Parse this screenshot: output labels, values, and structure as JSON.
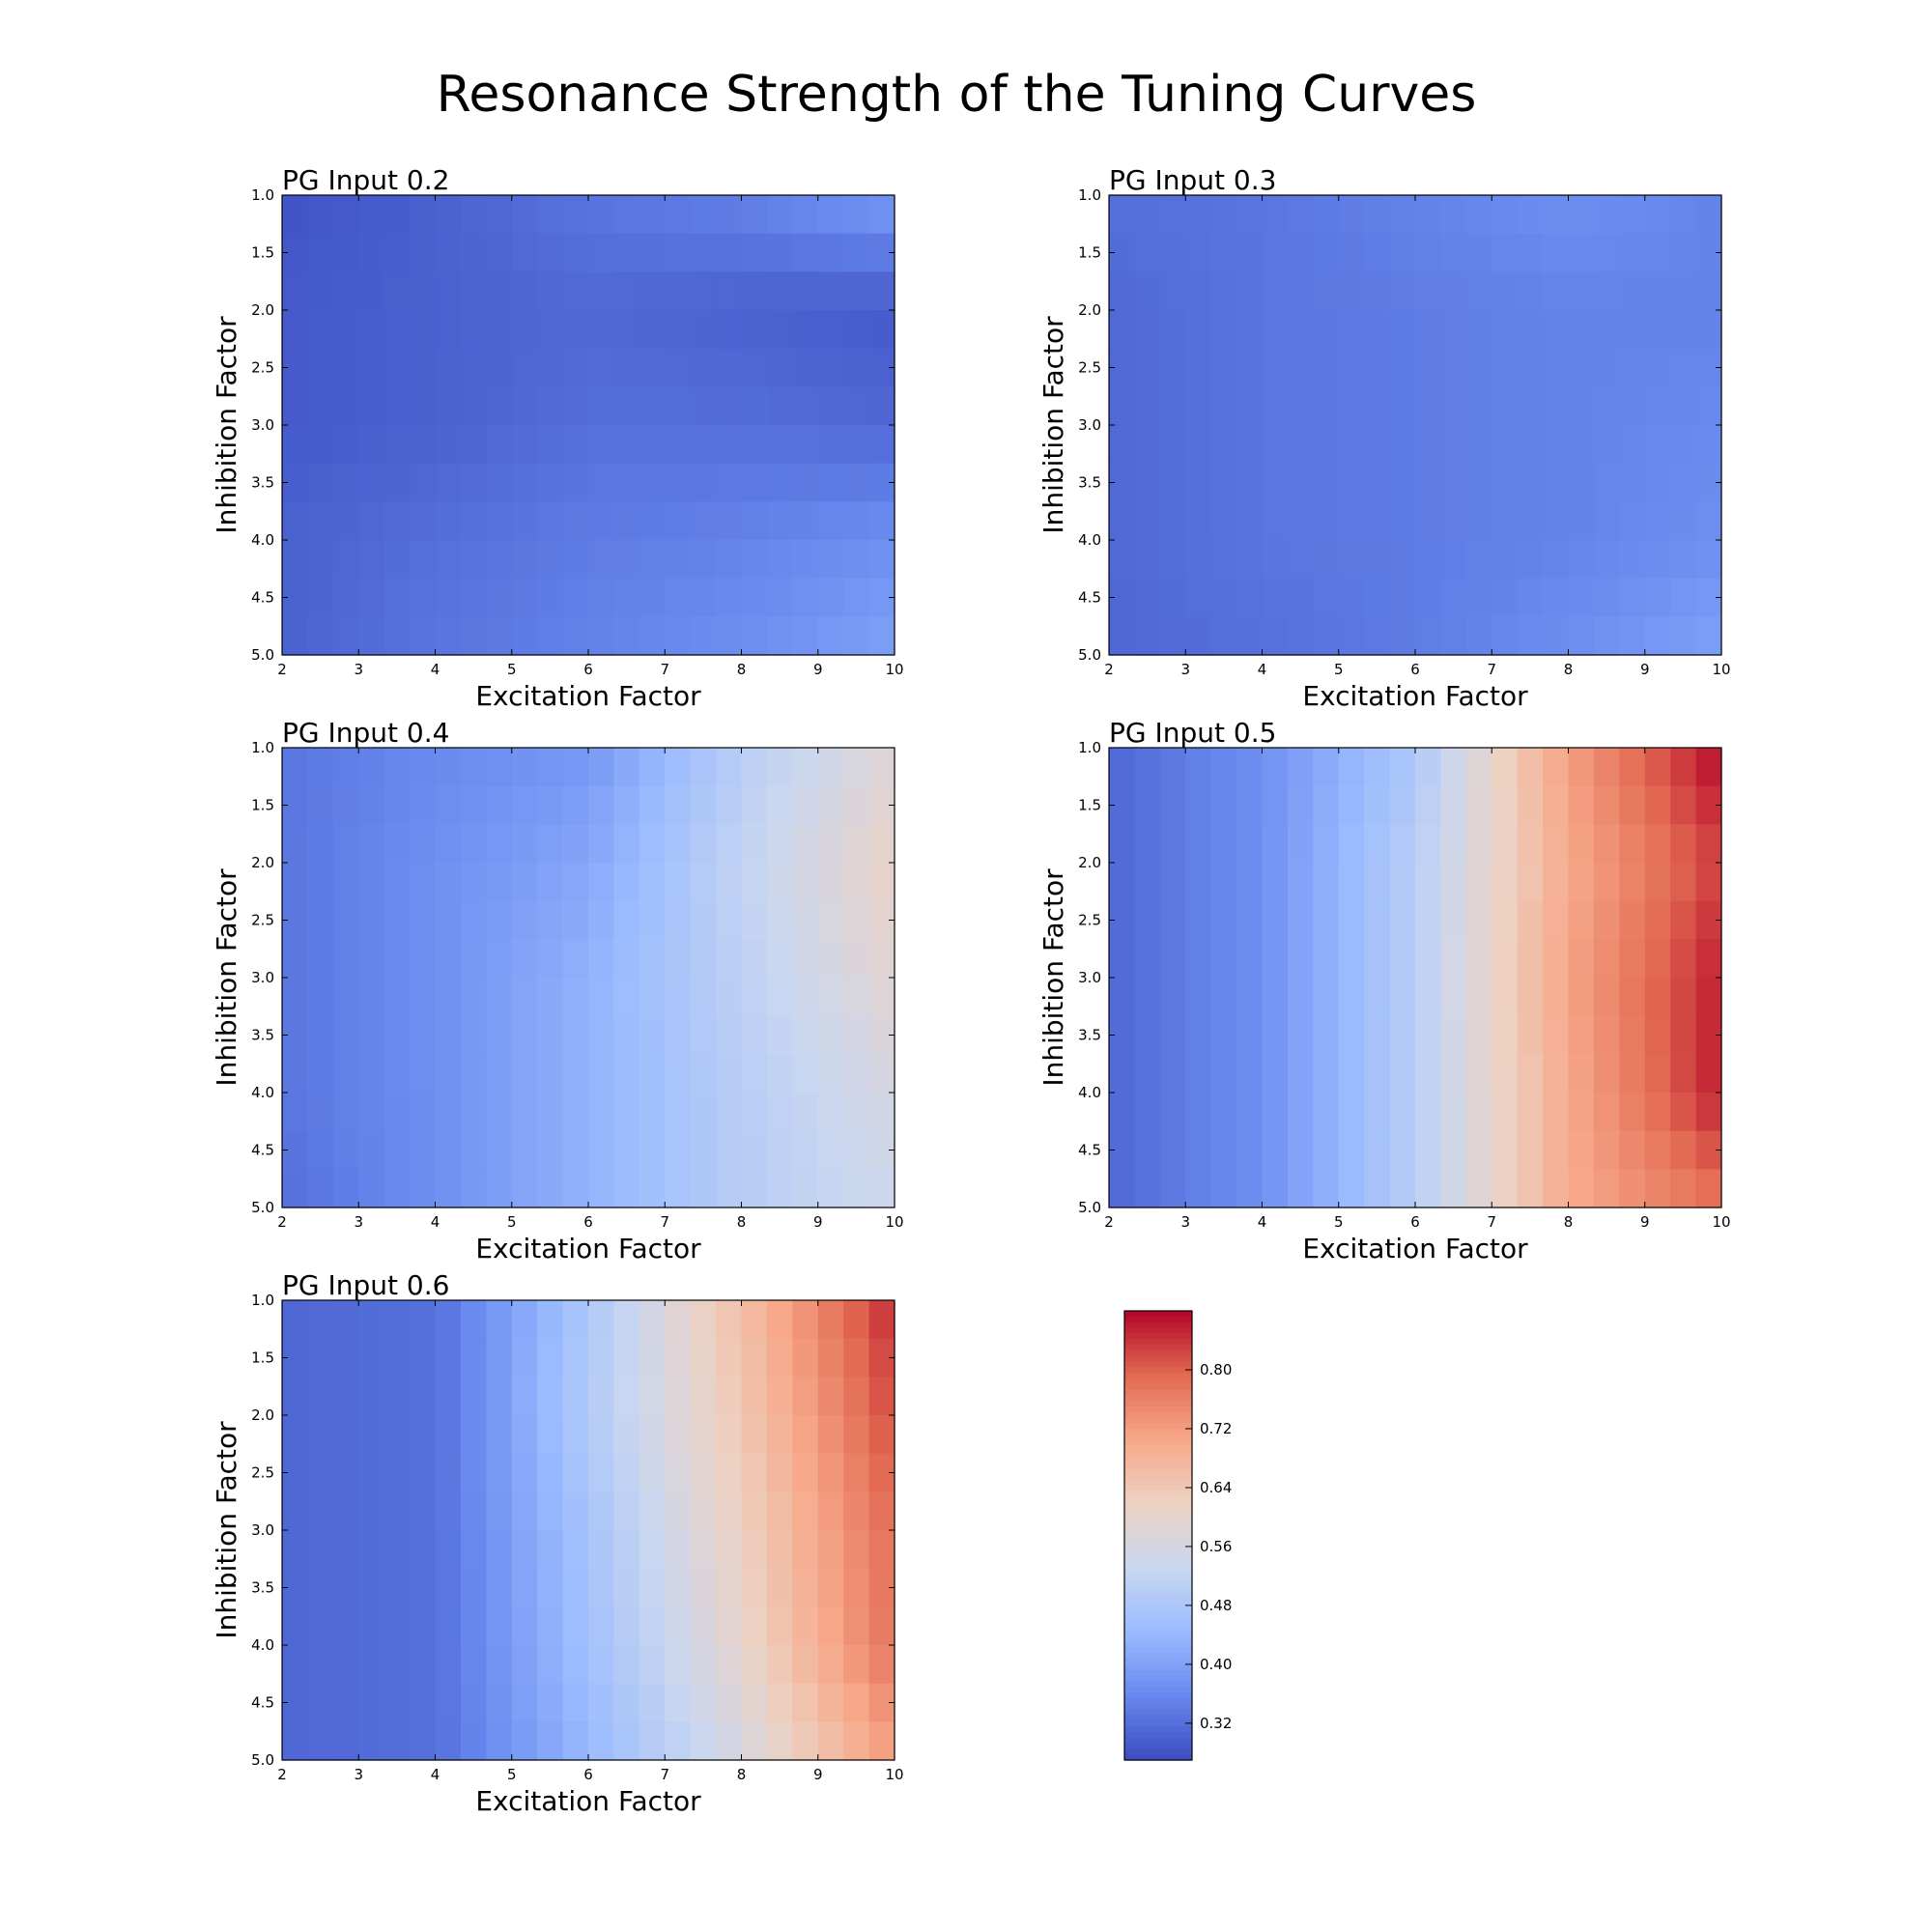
{
  "figure_title": "Resonance Strength of the Tuning Curves",
  "colormap": {
    "name": "coolwarm",
    "vmin": 0.27,
    "vmax": 0.88,
    "stops": [
      "#3b4cc0",
      "#6788ee",
      "#9abbff",
      "#c9d7f0",
      "#edd1c2",
      "#f7a889",
      "#e26952",
      "#b40426"
    ]
  },
  "colorbar": {
    "ticks": [
      0.32,
      0.4,
      0.48,
      0.56,
      0.64,
      0.72,
      0.8
    ],
    "tick_labels": [
      "0.32",
      "0.40",
      "0.48",
      "0.56",
      "0.64",
      "0.72",
      "0.80"
    ]
  },
  "chart_data": [
    {
      "type": "heatmap",
      "title": "PG Input 0.2",
      "xlabel": "Excitation Factor",
      "ylabel": "Inhibition Factor",
      "x": [
        2,
        4,
        6,
        8,
        10
      ],
      "y": [
        1,
        2,
        3,
        4,
        5
      ],
      "xlim": [
        2,
        10
      ],
      "ylim": [
        5.0,
        1.0
      ],
      "xticks": [
        2,
        3,
        4,
        5,
        6,
        7,
        8,
        9,
        10
      ],
      "xtick_labels": [
        "2",
        "3",
        "4",
        "5",
        "6",
        "7",
        "8",
        "9",
        "10"
      ],
      "yticks": [
        1.0,
        1.5,
        2.0,
        2.5,
        3.0,
        3.5,
        4.0,
        4.5,
        5.0
      ],
      "ytick_labels": [
        "1.0",
        "1.5",
        "2.0",
        "2.5",
        "3.0",
        "3.5",
        "4.0",
        "4.5",
        "5.0"
      ],
      "z": [
        [
          0.28,
          0.3,
          0.33,
          0.35,
          0.39
        ],
        [
          0.29,
          0.3,
          0.31,
          0.3,
          0.29
        ],
        [
          0.29,
          0.3,
          0.32,
          0.32,
          0.31
        ],
        [
          0.3,
          0.32,
          0.34,
          0.35,
          0.37
        ],
        [
          0.3,
          0.33,
          0.35,
          0.37,
          0.4
        ]
      ]
    },
    {
      "type": "heatmap",
      "title": "PG Input 0.3",
      "xlabel": "Excitation Factor",
      "ylabel": "Inhibition Factor",
      "x": [
        2,
        4,
        6,
        8,
        10
      ],
      "y": [
        1,
        2,
        3,
        4,
        5
      ],
      "xlim": [
        2,
        10
      ],
      "ylim": [
        5.0,
        1.0
      ],
      "xticks": [
        2,
        3,
        4,
        5,
        6,
        7,
        8,
        9,
        10
      ],
      "xtick_labels": [
        "2",
        "3",
        "4",
        "5",
        "6",
        "7",
        "8",
        "9",
        "10"
      ],
      "yticks": [
        1.0,
        1.5,
        2.0,
        2.5,
        3.0,
        3.5,
        4.0,
        4.5,
        5.0
      ],
      "ytick_labels": [
        "1.0",
        "1.5",
        "2.0",
        "2.5",
        "3.0",
        "3.5",
        "4.0",
        "4.5",
        "5.0"
      ],
      "z": [
        [
          0.32,
          0.33,
          0.35,
          0.37,
          0.35
        ],
        [
          0.31,
          0.33,
          0.34,
          0.35,
          0.35
        ],
        [
          0.31,
          0.33,
          0.34,
          0.35,
          0.36
        ],
        [
          0.31,
          0.33,
          0.34,
          0.35,
          0.37
        ],
        [
          0.31,
          0.32,
          0.34,
          0.37,
          0.4
        ]
      ]
    },
    {
      "type": "heatmap",
      "title": "PG Input 0.4",
      "xlabel": "Excitation Factor",
      "ylabel": "Inhibition Factor",
      "x": [
        2,
        4,
        6,
        8,
        10
      ],
      "y": [
        1,
        2,
        3,
        4,
        5
      ],
      "xlim": [
        2,
        10
      ],
      "ylim": [
        5.0,
        1.0
      ],
      "xticks": [
        2,
        3,
        4,
        5,
        6,
        7,
        8,
        9,
        10
      ],
      "xtick_labels": [
        "2",
        "3",
        "4",
        "5",
        "6",
        "7",
        "8",
        "9",
        "10"
      ],
      "yticks": [
        1.0,
        1.5,
        2.0,
        2.5,
        3.0,
        3.5,
        4.0,
        4.5,
        5.0
      ],
      "ytick_labels": [
        "1.0",
        "1.5",
        "2.0",
        "2.5",
        "3.0",
        "3.5",
        "4.0",
        "4.5",
        "5.0"
      ],
      "z": [
        [
          0.33,
          0.36,
          0.38,
          0.5,
          0.58
        ],
        [
          0.33,
          0.37,
          0.41,
          0.52,
          0.61
        ],
        [
          0.33,
          0.37,
          0.43,
          0.51,
          0.59
        ],
        [
          0.33,
          0.37,
          0.43,
          0.5,
          0.56
        ],
        [
          0.32,
          0.37,
          0.43,
          0.5,
          0.54
        ]
      ]
    },
    {
      "type": "heatmap",
      "title": "PG Input 0.5",
      "xlabel": "Excitation Factor",
      "ylabel": "Inhibition Factor",
      "x": [
        2,
        4,
        6,
        8,
        10
      ],
      "y": [
        1,
        2,
        3,
        4,
        5
      ],
      "xlim": [
        2,
        10
      ],
      "ylim": [
        5.0,
        1.0
      ],
      "xticks": [
        2,
        3,
        4,
        5,
        6,
        7,
        8,
        9,
        10
      ],
      "xtick_labels": [
        "2",
        "3",
        "4",
        "5",
        "6",
        "7",
        "8",
        "9",
        "10"
      ],
      "yticks": [
        1.0,
        1.5,
        2.0,
        2.5,
        3.0,
        3.5,
        4.0,
        4.5,
        5.0
      ],
      "ytick_labels": [
        "1.0",
        "1.5",
        "2.0",
        "2.5",
        "3.0",
        "3.5",
        "4.0",
        "4.5",
        "5.0"
      ],
      "z": [
        [
          0.31,
          0.37,
          0.48,
          0.72,
          0.88
        ],
        [
          0.31,
          0.37,
          0.5,
          0.7,
          0.83
        ],
        [
          0.31,
          0.37,
          0.5,
          0.71,
          0.86
        ],
        [
          0.31,
          0.37,
          0.5,
          0.7,
          0.86
        ],
        [
          0.31,
          0.37,
          0.5,
          0.7,
          0.78
        ]
      ]
    },
    {
      "type": "heatmap",
      "title": "PG Input 0.6",
      "xlabel": "Excitation Factor",
      "ylabel": "Inhibition Factor",
      "x": [
        2,
        4,
        6,
        8,
        10
      ],
      "y": [
        1,
        2,
        3,
        4,
        5
      ],
      "xlim": [
        2,
        10
      ],
      "ylim": [
        5.0,
        1.0
      ],
      "xticks": [
        2,
        3,
        4,
        5,
        6,
        7,
        8,
        9,
        10
      ],
      "xtick_labels": [
        "2",
        "3",
        "4",
        "5",
        "6",
        "7",
        "8",
        "9",
        "10"
      ],
      "yticks": [
        1.0,
        1.5,
        2.0,
        2.5,
        3.0,
        3.5,
        4.0,
        4.5,
        5.0
      ],
      "ytick_labels": [
        "1.0",
        "1.5",
        "2.0",
        "2.5",
        "3.0",
        "3.5",
        "4.0",
        "4.5",
        "5.0"
      ],
      "z": [
        [
          0.31,
          0.32,
          0.48,
          0.66,
          0.85
        ],
        [
          0.31,
          0.32,
          0.49,
          0.64,
          0.82
        ],
        [
          0.31,
          0.32,
          0.47,
          0.62,
          0.79
        ],
        [
          0.31,
          0.32,
          0.46,
          0.6,
          0.78
        ],
        [
          0.31,
          0.32,
          0.44,
          0.56,
          0.72
        ]
      ]
    }
  ]
}
